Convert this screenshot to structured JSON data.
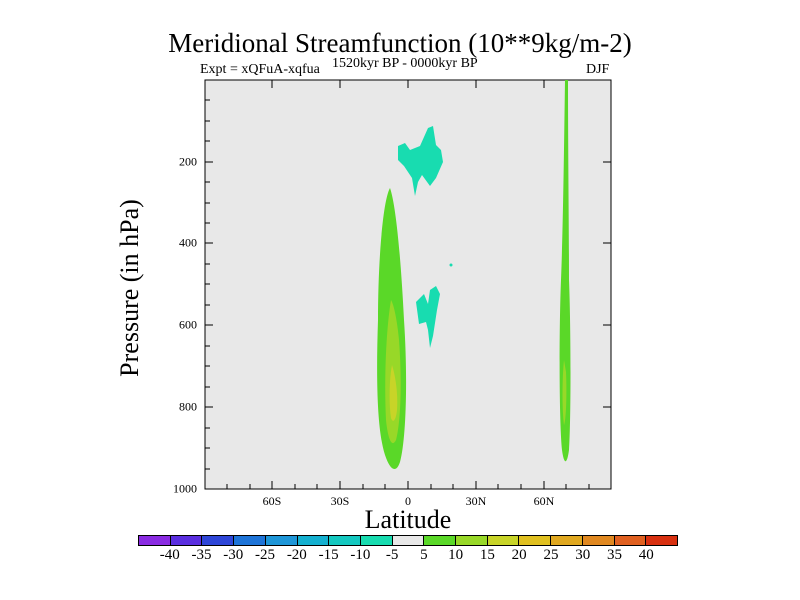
{
  "chart_data": {
    "type": "contour",
    "title": "Meridional Streamfunction (10**9kg/m-2)",
    "experiment_label": "Expt = xQFuA-xqfua",
    "period_label": "1520kyr BP - 0000kyr BP",
    "season_label": "DJF",
    "xlabel": "Latitude",
    "ylabel": "Pressure (in hPa)",
    "xlim": [
      -90,
      90
    ],
    "ylim": [
      1000,
      0
    ],
    "x_ticks": [
      {
        "value": -60,
        "label": "60S"
      },
      {
        "value": -30,
        "label": "30S"
      },
      {
        "value": 0,
        "label": "0"
      },
      {
        "value": 30,
        "label": "30N"
      },
      {
        "value": 60,
        "label": "60N"
      }
    ],
    "y_ticks": [
      {
        "value": 200,
        "label": "200"
      },
      {
        "value": 400,
        "label": "400"
      },
      {
        "value": 600,
        "label": "600"
      },
      {
        "value": 800,
        "label": "800"
      },
      {
        "value": 1000,
        "label": "1000"
      }
    ],
    "contour_levels": [
      "-40",
      "-35",
      "-30",
      "-25",
      "-20",
      "-15",
      "-10",
      "-5",
      "5",
      "10",
      "15",
      "20",
      "25",
      "30",
      "35",
      "40"
    ],
    "colorbar_colors": [
      "#8a2be2",
      "#5a2ee0",
      "#2e46d8",
      "#1e74d8",
      "#1e96d8",
      "#14b0d0",
      "#14c8c0",
      "#18dcb0",
      "#e8e8e8",
      "#5ad828",
      "#98d828",
      "#c8d428",
      "#e0c020",
      "#e0a820",
      "#e08820",
      "#e06020",
      "#d83010"
    ],
    "features": [
      {
        "name": "positive cell near equator",
        "lat_range": [
          -10,
          0
        ],
        "p_range": [
          270,
          960
        ],
        "max_value": 15
      },
      {
        "name": "positive cell high-latitude north",
        "lat_range": [
          67,
          70
        ],
        "p_range": [
          0,
          930
        ],
        "max_value": 10
      },
      {
        "name": "negative cell upper troposphere",
        "lat_range": [
          -5,
          17
        ],
        "p_range": [
          110,
          285
        ],
        "min_value": -10
      },
      {
        "name": "negative cell mid troposphere",
        "lat_range": [
          4,
          14
        ],
        "p_range": [
          510,
          660
        ],
        "min_value": -10
      }
    ],
    "grid": false
  }
}
